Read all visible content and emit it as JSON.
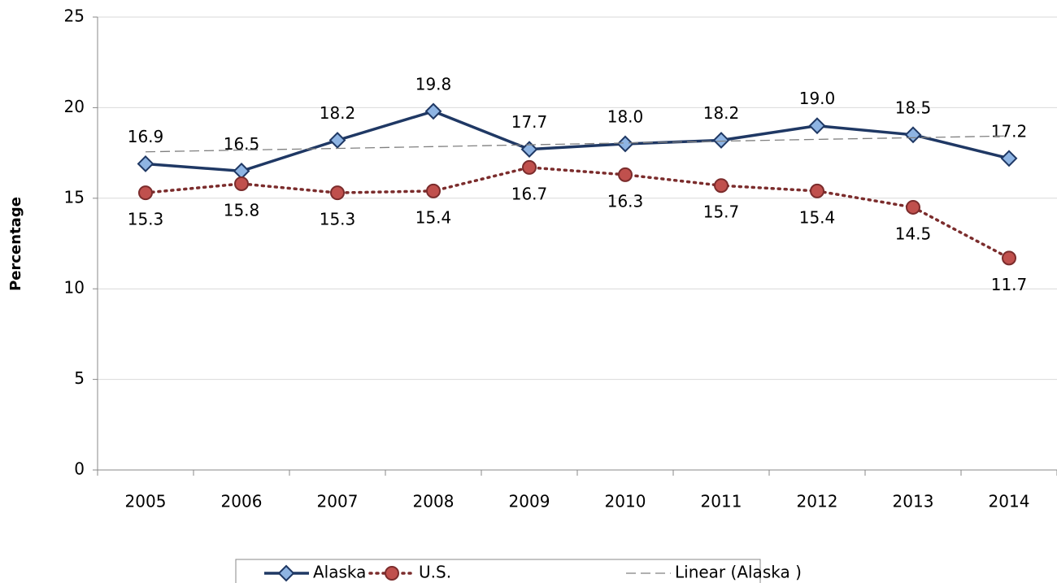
{
  "chart_data": {
    "type": "line",
    "y_label": "Percentage",
    "categories": [
      "2005",
      "2006",
      "2007",
      "2008",
      "2009",
      "2010",
      "2011",
      "2012",
      "2013",
      "2014"
    ],
    "series": [
      {
        "name": "Alaska",
        "color": "#1f3864",
        "marker_color": "#8eb4e3",
        "marker": "diamond",
        "style": "solid",
        "label_position": "above",
        "values": [
          16.9,
          16.5,
          18.2,
          19.8,
          17.7,
          18.0,
          18.2,
          19.0,
          18.5,
          17.2
        ],
        "value_labels": [
          "16.9",
          "16.5",
          "18.2",
          "19.8",
          "17.7",
          "18.0",
          "18.2",
          "19.0",
          "18.5",
          "17.2"
        ]
      },
      {
        "name": "U.S.",
        "color": "#7b2c2c",
        "marker_color": "#c0504d",
        "marker": "circle",
        "style": "dotted",
        "label_position": "below",
        "values": [
          15.3,
          15.8,
          15.3,
          15.4,
          16.7,
          16.3,
          15.7,
          15.4,
          14.5,
          11.7
        ],
        "value_labels": [
          "15.3",
          "15.8",
          "15.3",
          "15.4",
          "16.7",
          "16.3",
          "15.7",
          "15.4",
          "14.5",
          "11.7"
        ]
      },
      {
        "name": "Linear (Alaska )",
        "color": "#808080",
        "marker": "none",
        "style": "dashed",
        "values": [
          17.56,
          17.66,
          17.75,
          17.85,
          17.95,
          18.05,
          18.15,
          18.25,
          18.34,
          18.44
        ]
      }
    ],
    "ylim": [
      0,
      25
    ],
    "yticks": [
      0,
      5,
      10,
      15,
      20,
      25
    ],
    "grid": true,
    "legend": "bottom"
  }
}
